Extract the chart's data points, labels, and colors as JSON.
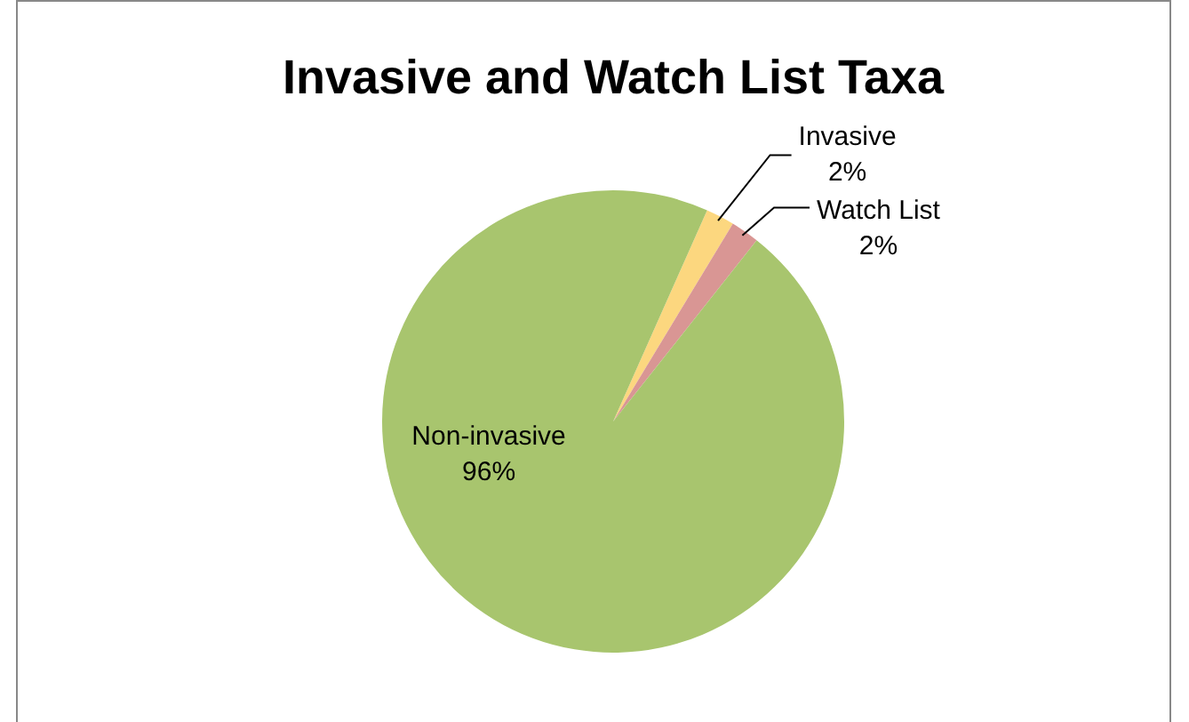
{
  "chart_data": {
    "type": "pie",
    "title": "Invasive and Watch List Taxa",
    "categories": [
      "Invasive",
      "Watch List",
      "Non-invasive"
    ],
    "values": [
      2,
      2,
      96
    ],
    "value_labels": [
      "2%",
      "2%",
      "96%"
    ],
    "colors": [
      "#fcd77f",
      "#d99694",
      "#a8c56e"
    ],
    "legend": false
  }
}
